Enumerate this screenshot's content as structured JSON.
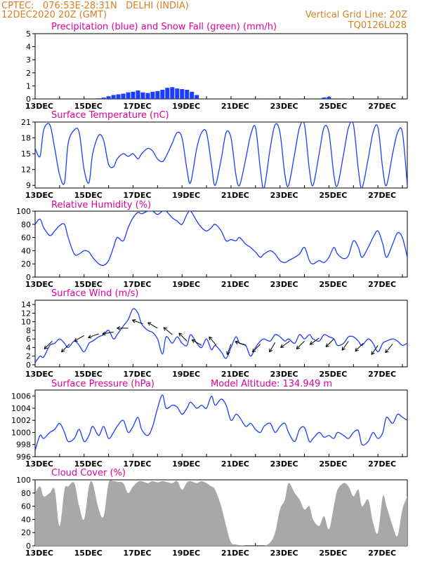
{
  "header": {
    "line1_left": "CPTEC:   076:53E-28:31N   DELHI (INDIA)",
    "line2_left": "12DEC2020 20Z (GMT)",
    "line2_right": "Vertical Grid Line: 20Z",
    "line3_right": "TQ0126L028"
  },
  "colors": {
    "header": "#d97f1f",
    "title": "#e000a0",
    "line": "#1a3dff",
    "snow": "#22aa22",
    "cloud": "#a8a8a8",
    "arrow": "#000000"
  },
  "x_axis_labels": [
    "13DEC",
    "15DEC",
    "17DEC",
    "19DEC",
    "21DEC",
    "23DEC",
    "25DEC",
    "27DEC"
  ],
  "chart_data": [
    {
      "id": "precip",
      "type": "bar",
      "title": "Precipitation (blue) and Snow Fall (green) (mm/h)",
      "ylim": [
        0,
        5
      ],
      "yticks": [
        0,
        1,
        2,
        3,
        4,
        5
      ],
      "x_unit": "days since 12DEC2020 20Z",
      "series": [
        {
          "name": "Precipitation",
          "color": "#1a3dff",
          "x": [
            2.6,
            2.8,
            3.0,
            3.2,
            3.4,
            3.6,
            3.8,
            4.0,
            4.2,
            4.4,
            4.6,
            4.8,
            5.0,
            5.2,
            5.4,
            5.6,
            5.8,
            6.0,
            6.2,
            6.4,
            6.6,
            11.8,
            12.0
          ],
          "values": [
            0.05,
            0.1,
            0.2,
            0.3,
            0.35,
            0.4,
            0.5,
            0.55,
            0.65,
            0.5,
            0.45,
            0.55,
            0.6,
            0.7,
            0.85,
            0.9,
            0.8,
            0.75,
            0.7,
            0.55,
            0.3,
            0.1,
            0.15
          ]
        },
        {
          "name": "Snow Fall",
          "color": "#22aa22",
          "x": [
            9.3,
            9.8,
            10.5,
            11.4,
            12.8
          ],
          "values": [
            0.05,
            0.05,
            0.04,
            0.05,
            0.04
          ]
        }
      ]
    },
    {
      "id": "temp",
      "type": "line",
      "title": "Surface Temperature (nC)",
      "ylim": [
        8.5,
        21
      ],
      "yticks": [
        9,
        12,
        15,
        18,
        21
      ],
      "x": [
        0,
        0.2,
        0.35,
        0.6,
        0.8,
        1.0,
        1.2,
        1.35,
        1.6,
        1.8,
        2.0,
        2.2,
        2.35,
        2.6,
        2.8,
        3.0,
        3.2,
        3.35,
        3.6,
        3.8,
        4.0,
        4.2,
        4.35,
        4.6,
        4.8,
        5.0,
        5.2,
        5.35,
        5.6,
        5.8,
        6.0,
        6.2,
        6.35,
        6.6,
        6.8,
        7.0,
        7.2,
        7.35,
        7.6,
        7.8,
        8.0,
        8.2,
        8.35,
        8.6,
        8.8,
        9.0,
        9.2,
        9.35,
        9.6,
        9.8,
        10.0,
        10.2,
        10.35,
        10.6,
        10.8,
        11.0,
        11.2,
        11.35,
        11.6,
        11.8,
        12.0,
        12.2,
        12.35,
        12.6,
        12.8,
        13.0,
        13.2,
        13.35,
        13.6,
        13.8,
        14.0,
        14.2,
        14.35,
        14.6,
        14.8,
        15.0,
        15.2
      ],
      "series": [
        {
          "name": "",
          "values": [
            16,
            14.5,
            19.5,
            20.5,
            16,
            11,
            9.5,
            17,
            19.5,
            19,
            12,
            9.5,
            15,
            18.5,
            17.5,
            13,
            12.5,
            14,
            15,
            14.5,
            15,
            14,
            15,
            16,
            15.5,
            14,
            13.5,
            14.5,
            17,
            19,
            18,
            12,
            9.5,
            16,
            19,
            19,
            13,
            9,
            14,
            19,
            18,
            11,
            9,
            14,
            18.5,
            20,
            12,
            8.5,
            16,
            20.5,
            19,
            11,
            9,
            15,
            20,
            20.5,
            12,
            9,
            15,
            20,
            19,
            11,
            9,
            15,
            20,
            20.5,
            12,
            8.5,
            14,
            19,
            20,
            12,
            9,
            15,
            19,
            19,
            9
          ]
        }
      ]
    },
    {
      "id": "rh",
      "type": "line",
      "title": "Relative Humidity (%)",
      "ylim": [
        0,
        100
      ],
      "yticks": [
        0,
        20,
        40,
        60,
        80,
        100
      ],
      "x": [
        0,
        0.2,
        0.35,
        0.6,
        0.8,
        1.0,
        1.2,
        1.35,
        1.6,
        1.8,
        2.0,
        2.2,
        2.35,
        2.6,
        2.8,
        3.0,
        3.2,
        3.35,
        3.6,
        3.8,
        4.0,
        4.2,
        4.35,
        4.6,
        4.8,
        5.0,
        5.2,
        5.35,
        5.6,
        5.8,
        6.0,
        6.2,
        6.35,
        6.6,
        6.8,
        7.0,
        7.2,
        7.35,
        7.6,
        7.8,
        8.0,
        8.2,
        8.35,
        8.6,
        8.8,
        9.0,
        9.2,
        9.35,
        9.6,
        9.8,
        10.0,
        10.2,
        10.35,
        10.6,
        10.8,
        11.0,
        11.2,
        11.35,
        11.6,
        11.8,
        12.0,
        12.2,
        12.35,
        12.6,
        12.8,
        13.0,
        13.2,
        13.35,
        13.6,
        13.8,
        14.0,
        14.2,
        14.35,
        14.6,
        14.8,
        15.0,
        15.2
      ],
      "series": [
        {
          "name": "",
          "values": [
            80,
            88,
            75,
            63,
            70,
            78,
            80,
            60,
            35,
            35,
            40,
            38,
            30,
            20,
            18,
            25,
            45,
            60,
            55,
            75,
            90,
            98,
            96,
            100,
            100,
            95,
            100,
            100,
            90,
            85,
            80,
            95,
            100,
            85,
            75,
            70,
            75,
            80,
            70,
            55,
            57,
            55,
            60,
            50,
            45,
            38,
            30,
            35,
            40,
            35,
            25,
            22,
            25,
            30,
            35,
            45,
            25,
            20,
            25,
            22,
            30,
            45,
            35,
            28,
            33,
            55,
            45,
            30,
            45,
            60,
            70,
            50,
            30,
            50,
            67,
            60,
            30
          ]
        }
      ]
    },
    {
      "id": "wind",
      "type": "line",
      "title": "Surface Wind (m/s)",
      "ylim": [
        -0.5,
        15
      ],
      "yticks": [
        0,
        2,
        4,
        6,
        8,
        10,
        12,
        14
      ],
      "x": [
        0,
        0.2,
        0.35,
        0.6,
        0.8,
        1.0,
        1.2,
        1.35,
        1.6,
        1.8,
        2.0,
        2.2,
        2.35,
        2.6,
        2.8,
        3.0,
        3.2,
        3.35,
        3.6,
        3.8,
        4.0,
        4.2,
        4.35,
        4.6,
        4.8,
        5.0,
        5.2,
        5.35,
        5.6,
        5.8,
        6.0,
        6.2,
        6.35,
        6.6,
        6.8,
        7.0,
        7.2,
        7.35,
        7.6,
        7.8,
        8.0,
        8.2,
        8.35,
        8.6,
        8.8,
        9.0,
        9.2,
        9.35,
        9.6,
        9.8,
        10.0,
        10.2,
        10.35,
        10.6,
        10.8,
        11.0,
        11.2,
        11.35,
        11.6,
        11.8,
        12.0,
        12.2,
        12.35,
        12.6,
        12.8,
        13.0,
        13.2,
        13.35,
        13.6,
        13.8,
        14.0,
        14.2,
        14.35,
        14.6,
        14.8,
        15.0,
        15.2
      ],
      "series": [
        {
          "name": "",
          "values": [
            0.5,
            2,
            1.8,
            4.5,
            5,
            6,
            5,
            4,
            5.5,
            4.5,
            3,
            5,
            5.5,
            6.5,
            7,
            8,
            6,
            7,
            9,
            10.5,
            13,
            12,
            9.5,
            8,
            7.5,
            6,
            2.5,
            6.5,
            5,
            6.5,
            5,
            4.5,
            7,
            5,
            4,
            6,
            3.5,
            4.5,
            3,
            1.5,
            4,
            6.5,
            5,
            4.5,
            2,
            4,
            5.5,
            6,
            5.5,
            7,
            6.5,
            5.5,
            6,
            5,
            7,
            6,
            7,
            6,
            5.5,
            7,
            6.5,
            6,
            4.5,
            5,
            6.5,
            6.5,
            5.5,
            4.5,
            6,
            5,
            3,
            5,
            5.5,
            6,
            5.5,
            4.5,
            5
          ]
        }
      ],
      "vectors": [
        {
          "x": 0.7,
          "y": 5.5,
          "dir": 225
        },
        {
          "x": 1.4,
          "y": 4.8,
          "dir": 225
        },
        {
          "x": 2.0,
          "y": 6.8,
          "dir": 240
        },
        {
          "x": 2.6,
          "y": 7.2,
          "dir": 250
        },
        {
          "x": 3.2,
          "y": 7.6,
          "dir": 260
        },
        {
          "x": 3.8,
          "y": 8.5,
          "dir": 270
        },
        {
          "x": 4.4,
          "y": 9.5,
          "dir": 290
        },
        {
          "x": 5.0,
          "y": 8.5,
          "dir": 300
        },
        {
          "x": 5.6,
          "y": 7,
          "dir": 310
        },
        {
          "x": 6.2,
          "y": 5.5,
          "dir": 315
        },
        {
          "x": 6.8,
          "y": 4.5,
          "dir": 300
        },
        {
          "x": 7.4,
          "y": 4.5,
          "dir": 320
        },
        {
          "x": 8.0,
          "y": 4.8,
          "dir": 200
        },
        {
          "x": 8.6,
          "y": 4.5,
          "dir": 290
        },
        {
          "x": 9.2,
          "y": 4.8,
          "dir": 225
        },
        {
          "x": 9.8,
          "y": 5.2,
          "dir": 210
        },
        {
          "x": 10.4,
          "y": 5.5,
          "dir": 235
        },
        {
          "x": 11.0,
          "y": 5.5,
          "dir": 225
        },
        {
          "x": 11.6,
          "y": 6.2,
          "dir": 235
        },
        {
          "x": 12.2,
          "y": 6.0,
          "dir": 225
        },
        {
          "x": 12.8,
          "y": 5.5,
          "dir": 215
        },
        {
          "x": 13.4,
          "y": 5.0,
          "dir": 225
        },
        {
          "x": 14.0,
          "y": 4.5,
          "dir": 215
        },
        {
          "x": 14.6,
          "y": 4.8,
          "dir": 220
        }
      ]
    },
    {
      "id": "pressure",
      "type": "line",
      "title": "Surface Pressure (hPa)",
      "annotation": "Model Altitude: 134.949 m",
      "ylim": [
        996,
        1007
      ],
      "yticks": [
        996,
        998,
        1000,
        1002,
        1004,
        1006
      ],
      "x": [
        0,
        0.2,
        0.35,
        0.6,
        0.8,
        1.0,
        1.2,
        1.35,
        1.6,
        1.8,
        2.0,
        2.2,
        2.35,
        2.6,
        2.8,
        3.0,
        3.2,
        3.35,
        3.6,
        3.8,
        4.0,
        4.2,
        4.35,
        4.6,
        4.8,
        5.0,
        5.2,
        5.35,
        5.6,
        5.8,
        6.0,
        6.2,
        6.35,
        6.6,
        6.8,
        7.0,
        7.2,
        7.35,
        7.6,
        7.8,
        8.0,
        8.2,
        8.35,
        8.6,
        8.8,
        9.0,
        9.2,
        9.35,
        9.6,
        9.8,
        10.0,
        10.2,
        10.35,
        10.6,
        10.8,
        11.0,
        11.2,
        11.35,
        11.6,
        11.8,
        12.0,
        12.2,
        12.35,
        12.6,
        12.8,
        13.0,
        13.2,
        13.35,
        13.6,
        13.8,
        14.0,
        14.2,
        14.35,
        14.6,
        14.8,
        15.0,
        15.2
      ],
      "series": [
        {
          "name": "",
          "values": [
            997,
            999.5,
            999,
            1000,
            1000.5,
            1001.5,
            1000,
            998.5,
            999,
            1000.5,
            998.5,
            999.5,
            1001,
            999.5,
            1001,
            999,
            1000,
            1001,
            1002,
            1000,
            1001,
            1002.5,
            1000.5,
            999.5,
            1001,
            1004,
            1006.2,
            1004,
            1004.5,
            1004.2,
            1003,
            1004,
            1005,
            1004,
            1004.5,
            1004,
            1006,
            1004.5,
            1005.5,
            1004.5,
            1002,
            1003,
            1002.5,
            1001,
            1001.5,
            1000.5,
            1000,
            1001,
            1001.5,
            1000,
            1001,
            1001.5,
            1000,
            998.5,
            1000.5,
            1000.8,
            998.5,
            999,
            1000,
            999.2,
            999.5,
            999,
            1000,
            999.5,
            999,
            1000,
            1000.3,
            998,
            998.5,
            1000,
            999,
            1000,
            1002.5,
            1001.5,
            1003,
            1002.5,
            1002
          ]
        }
      ]
    },
    {
      "id": "cloud",
      "type": "area",
      "title": "Cloud Cover (%)",
      "ylim": [
        0,
        100
      ],
      "yticks": [
        0,
        20,
        40,
        60,
        80,
        100
      ],
      "x": [
        0,
        0.2,
        0.35,
        0.6,
        0.8,
        1.0,
        1.2,
        1.35,
        1.6,
        1.8,
        2.0,
        2.2,
        2.35,
        2.6,
        2.8,
        3.0,
        3.2,
        3.35,
        3.6,
        3.8,
        4.0,
        4.2,
        4.35,
        4.6,
        4.8,
        5.0,
        5.2,
        5.35,
        5.6,
        5.8,
        6.0,
        6.2,
        6.35,
        6.6,
        6.8,
        7.0,
        7.2,
        7.35,
        7.6,
        7.8,
        8.0,
        8.2,
        8.35,
        8.6,
        8.8,
        9.0,
        9.2,
        9.35,
        9.6,
        9.8,
        10.0,
        10.2,
        10.35,
        10.6,
        10.8,
        11.0,
        11.2,
        11.35,
        11.6,
        11.8,
        12.0,
        12.2,
        12.35,
        12.6,
        12.8,
        13.0,
        13.2,
        13.35,
        13.6,
        13.8,
        14.0,
        14.2,
        14.35,
        14.6,
        14.8,
        15.0,
        15.2
      ],
      "series": [
        {
          "name": "",
          "values": [
            80,
            90,
            75,
            80,
            85,
            30,
            85,
            90,
            95,
            60,
            40,
            90,
            95,
            55,
            45,
            95,
            98,
            97,
            95,
            80,
            90,
            97,
            98,
            95,
            98,
            96,
            98,
            97,
            95,
            98,
            85,
            96,
            98,
            95,
            98,
            95,
            90,
            85,
            60,
            30,
            5,
            2,
            1,
            0,
            0,
            0,
            0,
            0,
            5,
            20,
            55,
            70,
            95,
            80,
            70,
            55,
            60,
            40,
            30,
            45,
            25,
            60,
            85,
            95,
            90,
            75,
            85,
            60,
            70,
            35,
            20,
            75,
            60,
            30,
            15,
            55,
            75
          ]
        }
      ]
    }
  ]
}
